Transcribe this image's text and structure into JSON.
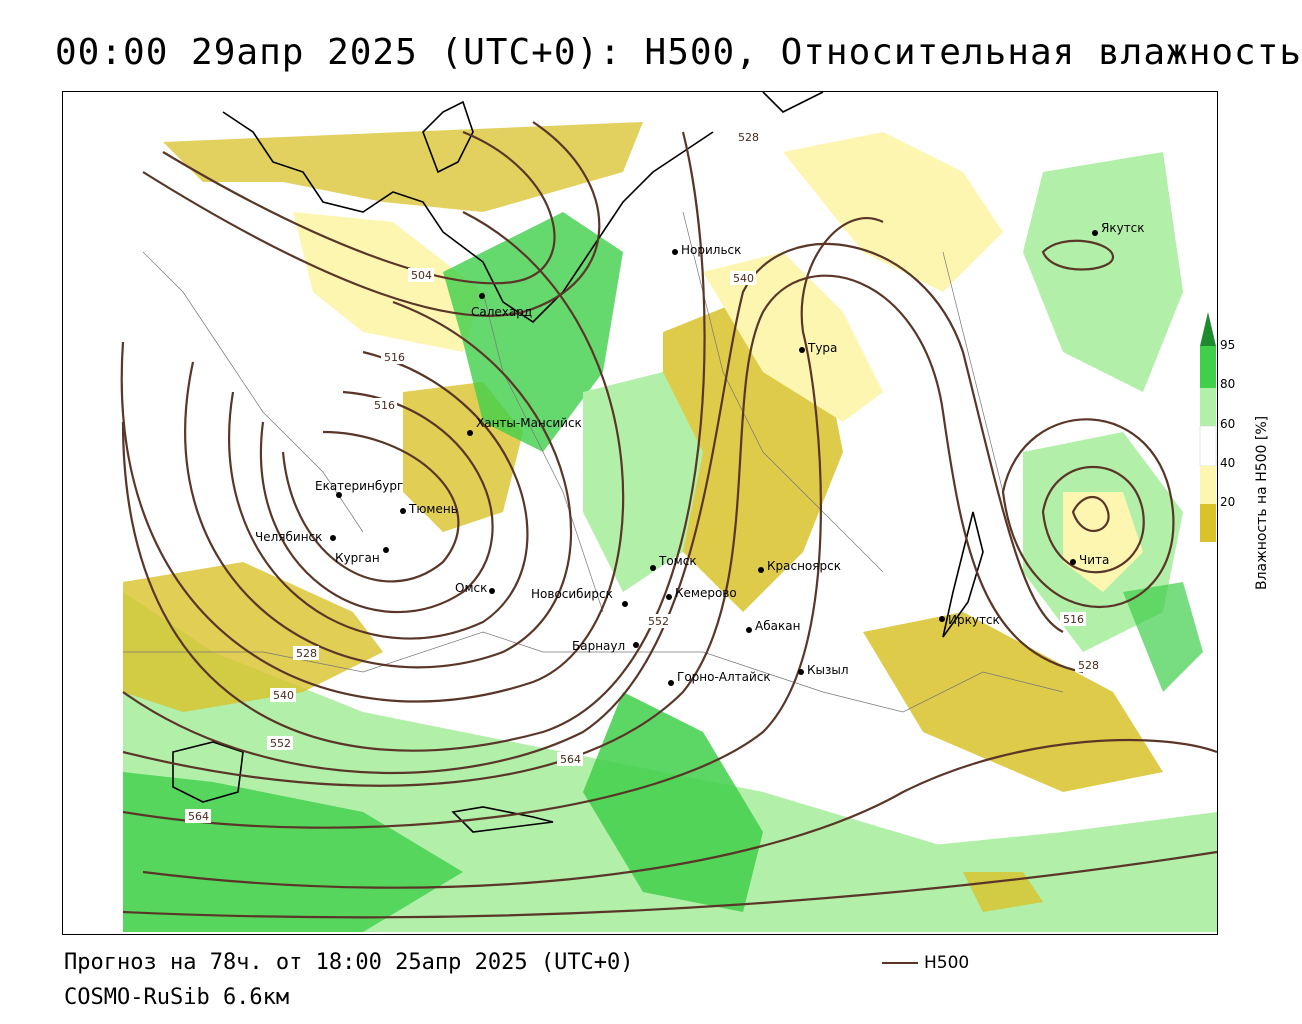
{
  "title": "00:00 29апр 2025 (UTC+0): H500, Относительная влажность",
  "footer": {
    "forecast": "Прогноз на 78ч. от 18:00 25апр 2025 (UTC+0)",
    "model": "COSMO-RuSib 6.6км"
  },
  "legend": {
    "h500_label": "H500",
    "h500_color": "#5a3628"
  },
  "colorbar": {
    "title": "Влажность на H500 [%]",
    "ticks": [
      "95",
      "80",
      "60",
      "40",
      "20"
    ],
    "colors": {
      "very_wet": "#1e8c2e",
      "wet": "#3fcf4a",
      "moist": "#b2efa8",
      "neutral": "#ffffff",
      "dry": "#fdf6b0",
      "very_dry": "#d9c22a"
    }
  },
  "cities": [
    {
      "name": "Якутск"
    },
    {
      "name": "Норильск"
    },
    {
      "name": "Салехард"
    },
    {
      "name": "Тура"
    },
    {
      "name": "Ханты-Мансийск"
    },
    {
      "name": "Екатеринбург"
    },
    {
      "name": "Тюмень"
    },
    {
      "name": "Челябинск"
    },
    {
      "name": "Курган"
    },
    {
      "name": "Омск"
    },
    {
      "name": "Новосибирск"
    },
    {
      "name": "Томск"
    },
    {
      "name": "Кемерово"
    },
    {
      "name": "Красноярск"
    },
    {
      "name": "Абакан"
    },
    {
      "name": "Барнаул"
    },
    {
      "name": "Горно-Алтайск"
    },
    {
      "name": "Кызыл"
    },
    {
      "name": "Иркутск"
    },
    {
      "name": "Чита"
    }
  ],
  "isolines": [
    "504",
    "516",
    "516",
    "528",
    "540",
    "552",
    "564",
    "564",
    "528",
    "540",
    "552",
    "516",
    "528"
  ]
}
